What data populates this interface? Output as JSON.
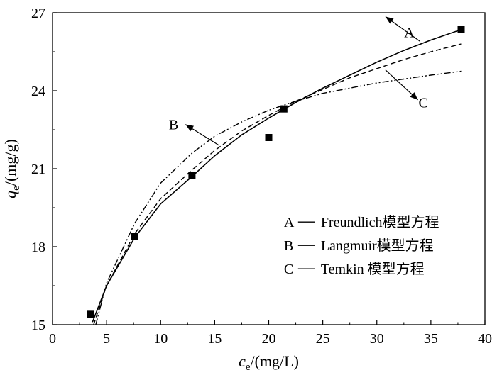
{
  "chart_data": {
    "type": "scatter",
    "xlim": [
      0,
      40
    ],
    "ylim": [
      15,
      27
    ],
    "xticks": [
      0,
      5,
      10,
      15,
      20,
      25,
      30,
      35,
      40
    ],
    "yticks": [
      15,
      18,
      21,
      24,
      27
    ],
    "xlabel": {
      "symbol": "c",
      "sub": "e",
      "unit": "/(mg/L)"
    },
    "ylabel": {
      "symbol": "q",
      "sub": "e",
      "unit": "/(mg/g)"
    },
    "points": {
      "x": [
        3.5,
        7.6,
        12.9,
        20.0,
        21.4,
        37.8
      ],
      "y": [
        15.4,
        18.4,
        20.75,
        22.2,
        23.3,
        26.35
      ]
    },
    "series": [
      {
        "name": "A",
        "model": "Freundlich模型方程",
        "dash": "solid",
        "x": [
          3.7,
          5,
          7.6,
          10,
          12.9,
          15,
          17.5,
          20,
          22.5,
          25,
          27.5,
          30,
          32.5,
          35,
          37.8
        ],
        "y": [
          15.1,
          16.5,
          18.35,
          19.65,
          20.7,
          21.5,
          22.3,
          22.95,
          23.55,
          24.1,
          24.6,
          25.1,
          25.55,
          25.95,
          26.35
        ]
      },
      {
        "name": "B",
        "model": "Langmuir模型方程",
        "dash": "dash",
        "x": [
          3.8,
          5,
          7.6,
          10,
          12.9,
          15,
          17.5,
          20,
          22.5,
          25,
          27.5,
          30,
          32.5,
          35,
          37.8
        ],
        "y": [
          15.0,
          16.5,
          18.5,
          19.85,
          20.95,
          21.7,
          22.45,
          23.05,
          23.6,
          24.05,
          24.5,
          24.85,
          25.2,
          25.5,
          25.8
        ]
      },
      {
        "name": "C",
        "model": "Temkin模型方程",
        "dash": "dashdot",
        "x": [
          4.0,
          5,
          7.6,
          10,
          12.9,
          15,
          17.5,
          20,
          22.5,
          25,
          27.5,
          30,
          32.5,
          35,
          37.8
        ],
        "y": [
          15.0,
          16.6,
          18.9,
          20.45,
          21.6,
          22.25,
          22.8,
          23.25,
          23.6,
          23.9,
          24.1,
          24.3,
          24.45,
          24.6,
          24.75
        ]
      }
    ],
    "annotations": [
      {
        "label": "A",
        "text_at": [
          33.0,
          26.25
        ],
        "arrow_from": [
          34.0,
          25.9
        ],
        "arrow_to": [
          30.8,
          26.85
        ]
      },
      {
        "label": "B",
        "text_at": [
          11.2,
          22.7
        ],
        "arrow_from": [
          15.4,
          21.9
        ],
        "arrow_to": [
          12.3,
          22.7
        ]
      },
      {
        "label": "C",
        "text_at": [
          34.3,
          23.55
        ],
        "arrow_from": [
          30.8,
          24.8
        ],
        "arrow_to": [
          33.8,
          23.65
        ]
      }
    ],
    "legend": {
      "position": "bottom-right",
      "entries": [
        {
          "letter": "A",
          "text": "Freundlich模型方程"
        },
        {
          "letter": "B",
          "text": "Langmuir模型方程"
        },
        {
          "letter": "C",
          "text": "Temkin 模型方程"
        }
      ]
    },
    "grid": false
  }
}
